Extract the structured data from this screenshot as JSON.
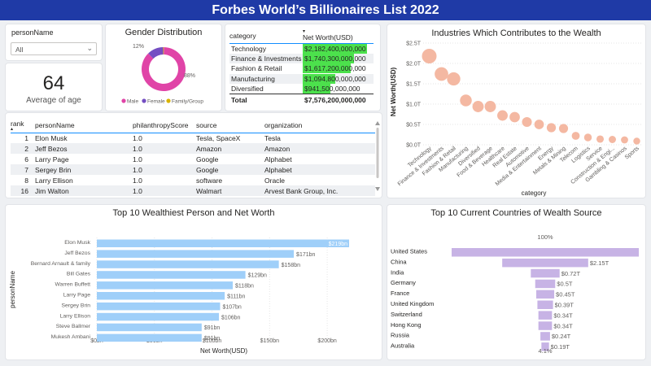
{
  "header": {
    "title": "Forbes World’s Billionaires List 2022"
  },
  "slicer": {
    "label": "personName",
    "value": "All"
  },
  "kpi": {
    "value": "64",
    "caption": "Average of age"
  },
  "colors": {
    "header": "#1f3aa6",
    "male": "#e044a7",
    "female": "#744ec2",
    "family": "#d9b300",
    "bar": "#9fcff9",
    "bubble": "#f4b8a2",
    "country_bar": "#c7b3e5",
    "green": "#4ce14c"
  },
  "gender": {
    "title": "Gender Distribution",
    "slices": [
      {
        "name": "Male",
        "percent": 88,
        "label": "88%"
      },
      {
        "name": "Female",
        "percent": 12,
        "label": "12%"
      },
      {
        "name": "Family/Group",
        "percent": 0.5,
        "label": ""
      }
    ],
    "legend": [
      "Male",
      "Female",
      "Family/Group"
    ]
  },
  "category_table": {
    "headers": [
      "category",
      "Net Worth(USD)"
    ],
    "rows": [
      {
        "category": "Technology",
        "net_worth": "$2,182,400,000,000",
        "share": 1.0
      },
      {
        "category": "Finance & Investments",
        "net_worth": "$1,740,300,000,000",
        "share": 0.797
      },
      {
        "category": "Fashion & Retail",
        "net_worth": "$1,617,200,000,000",
        "share": 0.741
      },
      {
        "category": "Manufacturing",
        "net_worth": "$1,094,800,000,000",
        "share": 0.502
      },
      {
        "category": "Diversified",
        "net_worth": "$941,500,000,000",
        "share": 0.431
      }
    ],
    "total_label": "Total",
    "total_value": "$7,576,200,000,000"
  },
  "people_table": {
    "headers": [
      "rank",
      "personName",
      "philanthropyScore",
      "source",
      "organization"
    ],
    "rows": [
      [
        "1",
        "Elon Musk",
        "1.0",
        "Tesla, SpaceX",
        "Tesla"
      ],
      [
        "2",
        "Jeff Bezos",
        "1.0",
        "Amazon",
        "Amazon"
      ],
      [
        "6",
        "Larry Page",
        "1.0",
        "Google",
        "Alphabet"
      ],
      [
        "7",
        "Sergey Brin",
        "1.0",
        "Google",
        "Alphabet"
      ],
      [
        "8",
        "Larry Ellison",
        "1.0",
        "software",
        "Oracle"
      ],
      [
        "16",
        "Jim Walton",
        "1.0",
        "Walmart",
        "Arvest Bank Group, Inc."
      ]
    ]
  },
  "chart_data": [
    {
      "type": "scatter",
      "title": "Industries Which Contributes to the Wealth",
      "xlabel": "category",
      "ylabel": "Net Worth(USD)",
      "yticks": [
        "$0.0T",
        "$0.5T",
        "$1.0T",
        "$1.5T",
        "$2.0T",
        "$2.5T"
      ],
      "ylim": [
        0,
        2.5
      ],
      "categories": [
        "Technology",
        "Finance & Investments",
        "Fashion & Retail",
        "Manufacturing",
        "Diversified",
        "Food & Beverage",
        "Healthcare",
        "Real Estate",
        "Automotive",
        "Media & Entertainment",
        "Energy",
        "Metals & Mining",
        "Telecom",
        "Logistics",
        "Service",
        "Construction & Engi...",
        "Gambling & Casinos",
        "Sports"
      ],
      "values": [
        2.18,
        1.74,
        1.62,
        1.09,
        0.94,
        0.94,
        0.72,
        0.68,
        0.56,
        0.5,
        0.42,
        0.4,
        0.22,
        0.18,
        0.14,
        0.13,
        0.12,
        0.09
      ]
    },
    {
      "type": "bar",
      "title": "Top 10 Wealthiest Person and Net Worth",
      "xlabel": "Net Worth(USD)",
      "ylabel": "personName",
      "xticks": [
        "$0bn",
        "$50bn",
        "$100bn",
        "$150bn",
        "$200bn"
      ],
      "xlim": [
        0,
        219
      ],
      "categories": [
        "Elon Musk",
        "Jeff Bezos",
        "Bernard Arnault & family",
        "Bill Gates",
        "Warren Buffett",
        "Larry Page",
        "Sergey Brin",
        "Larry Ellison",
        "Steve Ballmer",
        "Mukesh Ambani"
      ],
      "values": [
        219,
        171,
        158,
        129,
        118,
        111,
        107,
        106,
        91,
        91
      ],
      "labels": [
        "$219bn",
        "$171bn",
        "$158bn",
        "$129bn",
        "$118bn",
        "$111bn",
        "$107bn",
        "$106bn",
        "$91bn",
        "$91bn"
      ]
    },
    {
      "type": "bar",
      "subtype": "funnel",
      "title": "Top 10 Current Countries of Wealth Source",
      "top_label": "100%",
      "bottom_label": "4.1%",
      "categories": [
        "United States",
        "China",
        "India",
        "Germany",
        "France",
        "United Kingdom",
        "Switzerland",
        "Hong Kong",
        "Russia",
        "Australia"
      ],
      "values": [
        4.68,
        2.15,
        0.72,
        0.5,
        0.45,
        0.39,
        0.34,
        0.34,
        0.24,
        0.19
      ],
      "labels": [
        "",
        "$2.15T",
        "$0.72T",
        "$0.5T",
        "$0.45T",
        "$0.39T",
        "$0.34T",
        "$0.34T",
        "$0.24T",
        "$0.19T"
      ]
    }
  ]
}
